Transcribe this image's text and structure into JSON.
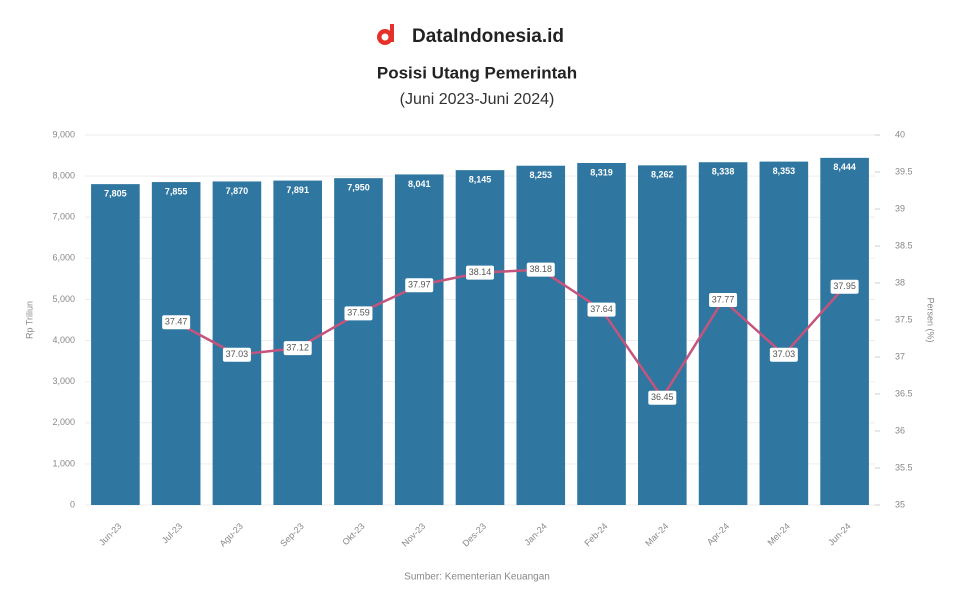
{
  "brand": "DataIndonesia.id",
  "chart_data": {
    "type": "bar-line",
    "title": "Posisi Utang Pemerintah",
    "subtitle": "(Juni 2023-Juni 2024)",
    "source": "Sumber: Kementerian Keuangan",
    "y_label": "Rp Triliun",
    "y2_label": "Persen (%)",
    "categories": [
      "Jun-23",
      "Jul-23",
      "Agu-23",
      "Sep-23",
      "Okt-23",
      "Nov-23",
      "Des-23",
      "Jan-24",
      "Feb-24",
      "Mar-24",
      "Apr-24",
      "Mei-24",
      "Jun-24"
    ],
    "series": [
      {
        "name": "Utang",
        "type": "bar",
        "color": "#2f77a0",
        "values": [
          7805,
          7855,
          7870,
          7891,
          7950,
          8041,
          8145,
          8253,
          8319,
          8262,
          8338,
          8353,
          8444
        ],
        "value_labels": [
          "7,805",
          "7,855",
          "7,870",
          "7,891",
          "7,950",
          "8,041",
          "8,145",
          "8,253",
          "8,319",
          "8,262",
          "8,338",
          "8,353",
          "8,444"
        ]
      },
      {
        "name": "Rasio",
        "type": "line",
        "axis": "y2",
        "color": "#c4547c",
        "values": [
          null,
          37.47,
          37.03,
          37.12,
          37.59,
          37.97,
          38.14,
          38.18,
          37.64,
          36.45,
          37.77,
          37.03,
          37.95
        ]
      }
    ],
    "ylim": [
      0,
      9000
    ],
    "yticks": [
      0,
      {
        "value": 1000,
        "label": "1,000"
      },
      {
        "value": 2000,
        "label": "2,000"
      },
      {
        "value": 3000,
        "label": "3,000"
      },
      {
        "value": 4000,
        "label": "4,000"
      },
      {
        "value": 5000,
        "label": "5,000"
      },
      {
        "value": 6000,
        "label": "6,000"
      },
      {
        "value": 7000,
        "label": "7,000"
      },
      {
        "value": 8000,
        "label": "8,000"
      },
      {
        "value": 9000,
        "label": "9,000"
      }
    ],
    "y2lim": [
      35,
      40
    ],
    "y2ticks": [
      35,
      35.5,
      36,
      36.5,
      37,
      37.5,
      38,
      38.5,
      39,
      39.5,
      40
    ]
  }
}
